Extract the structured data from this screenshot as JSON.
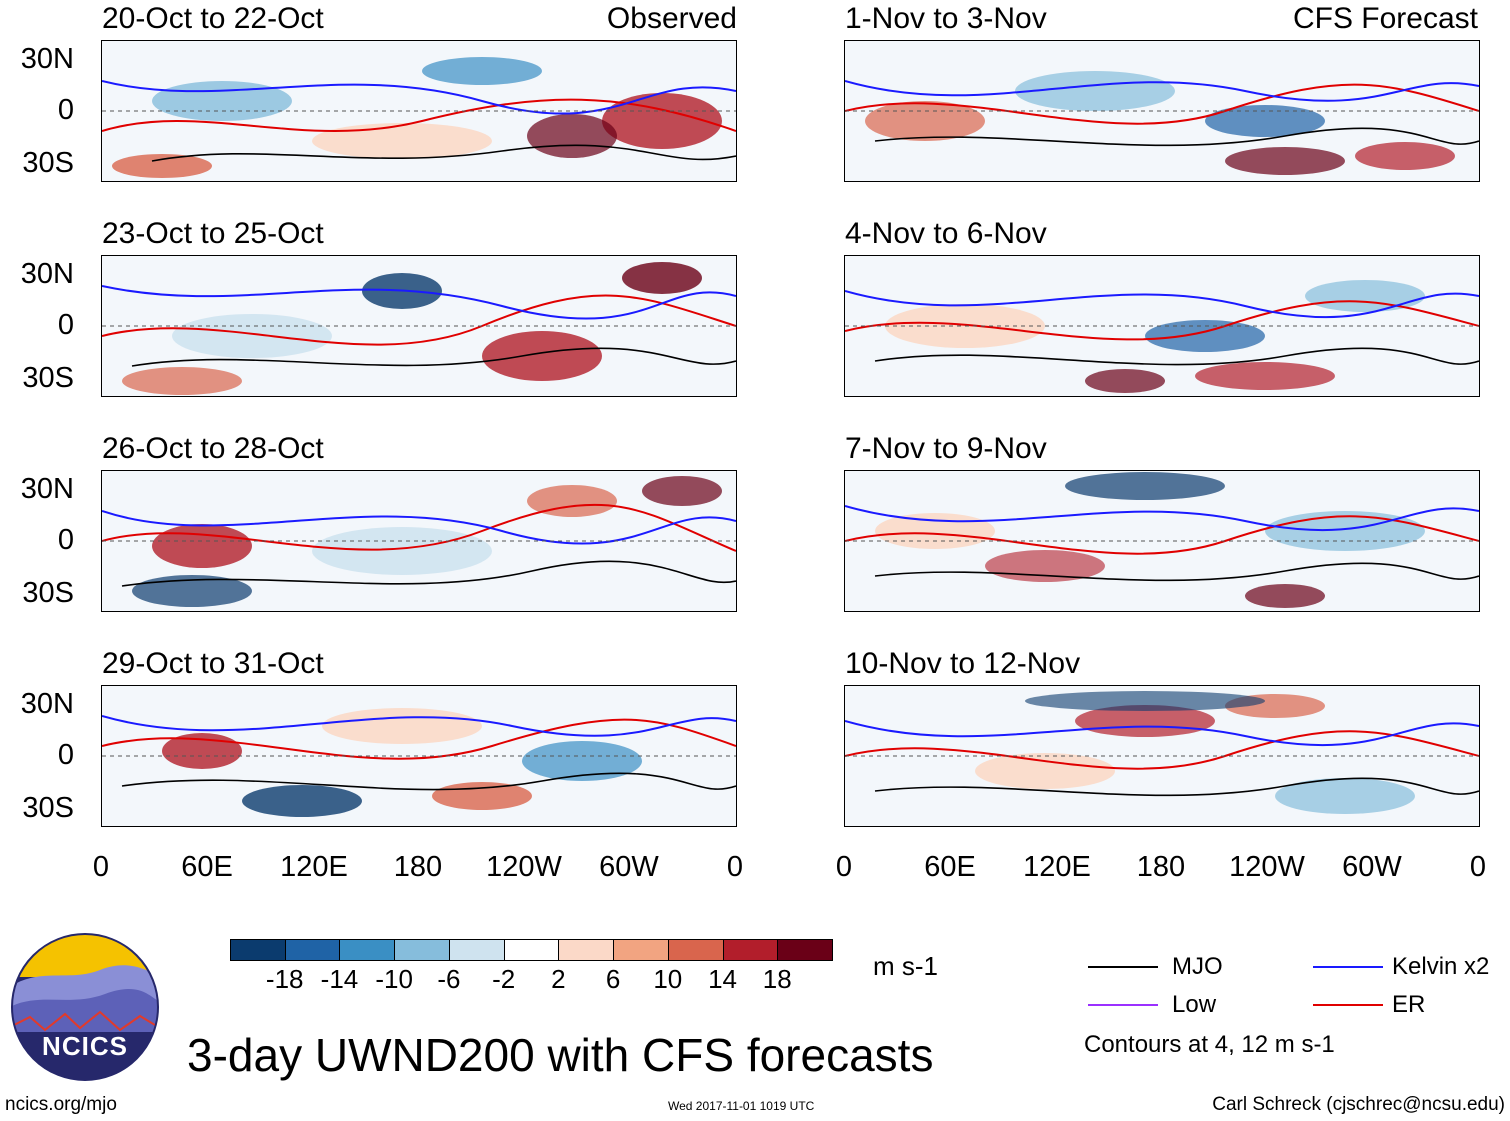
{
  "observed_label": "Observed",
  "forecast_label": "CFS Forecast",
  "panels_left": [
    {
      "title": "20-Oct to 22-Oct"
    },
    {
      "title": "23-Oct to 25-Oct"
    },
    {
      "title": "26-Oct to 28-Oct"
    },
    {
      "title": "29-Oct to 31-Oct"
    }
  ],
  "panels_right": [
    {
      "title": "1-Nov to 3-Nov"
    },
    {
      "title": "4-Nov to 6-Nov"
    },
    {
      "title": "7-Nov to 9-Nov"
    },
    {
      "title": "10-Nov to 12-Nov"
    }
  ],
  "lat_labels": [
    "30N",
    "0",
    "30S"
  ],
  "lon_labels": [
    "0",
    "60E",
    "120E",
    "180",
    "120W",
    "60W",
    "0"
  ],
  "colorbar": {
    "colors": [
      "#0b3b6e",
      "#1f63a6",
      "#3a8fc4",
      "#86bddc",
      "#cfe3ef",
      "#ffffff",
      "#fbd9c8",
      "#f2a481",
      "#d9654d",
      "#b21e2b",
      "#6a0017"
    ],
    "labels": [
      "-18",
      "-14",
      "-10",
      "-6",
      "-2",
      "2",
      "6",
      "10",
      "14",
      "18"
    ],
    "units": "m s-1"
  },
  "legend": {
    "items": [
      {
        "name": "MJO",
        "color": "#000000"
      },
      {
        "name": "Kelvin x2",
        "color": "#1a1aff"
      },
      {
        "name": "Low",
        "color": "#9b30ff"
      },
      {
        "name": "ER",
        "color": "#e00000"
      }
    ],
    "note": "Contours at 4, 12 m s-1"
  },
  "logo_text": "NCICS",
  "main_title": "3-day UWND200 with CFS forecasts",
  "footer_left": "ncics.org/mjo",
  "footer_center": "Wed 2017-11-01 1019 UTC",
  "footer_right": "Carl Schreck (cjschrec@ncsu.edu)"
}
